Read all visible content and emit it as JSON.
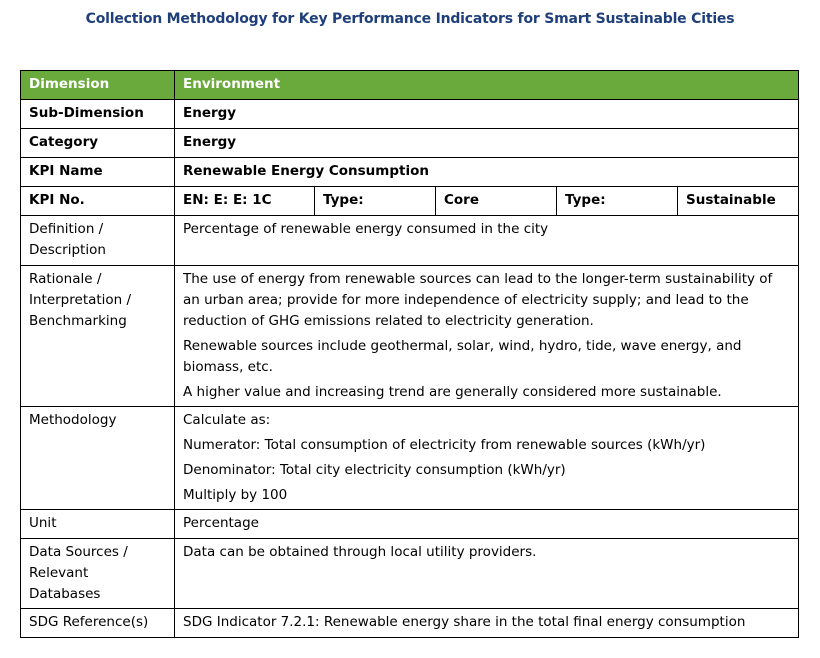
{
  "title": "Collection Methodology for Key Performance Indicators for Smart Sustainable Cities",
  "table": {
    "dimension_label": "Dimension",
    "dimension_value": "Environment",
    "subdimension_label": "Sub-Dimension",
    "subdimension_value": "Energy",
    "category_label": "Category",
    "category_value": "Energy",
    "kpi_name_label": "KPI Name",
    "kpi_name_value": "Renewable Energy Consumption",
    "kpi_no_label": "KPI No.",
    "kpi_no_value": "EN: E: E: 1C",
    "type1_label": "Type:",
    "type1_value": "Core",
    "type2_label": "Type:",
    "type2_value": "Sustainable",
    "definition_label": "Definition /\nDescription",
    "definition_value": "Percentage of renewable energy consumed in the city",
    "rationale_label": "Rationale /\nInterpretation /\nBenchmarking",
    "rationale_paragraphs": [
      "The use of energy from renewable sources can lead to the longer-term sustainability of an urban area; provide for more independence of electricity supply; and lead to the reduction of GHG emissions related to electricity generation.",
      "Renewable sources include geothermal, solar, wind, hydro, tide, wave energy, and biomass, etc.",
      "A higher value and increasing trend are generally considered more sustainable."
    ],
    "methodology_label": "Methodology",
    "methodology_lines": [
      "Calculate as:",
      "Numerator: Total consumption of electricity from renewable sources (kWh/yr)",
      "Denominator: Total city electricity consumption (kWh/yr)",
      "Multiply by 100"
    ],
    "unit_label": "Unit",
    "unit_value": "Percentage",
    "data_sources_label": "Data Sources /\nRelevant\nDatabases",
    "data_sources_value": "Data can be obtained through local utility providers.",
    "sdg_label": "SDG Reference(s)",
    "sdg_value": "SDG Indicator 7.2.1: Renewable energy share in the total final energy consumption"
  },
  "colors": {
    "header_green": "#6aaa3c",
    "title_blue": "#1f3f7a"
  }
}
